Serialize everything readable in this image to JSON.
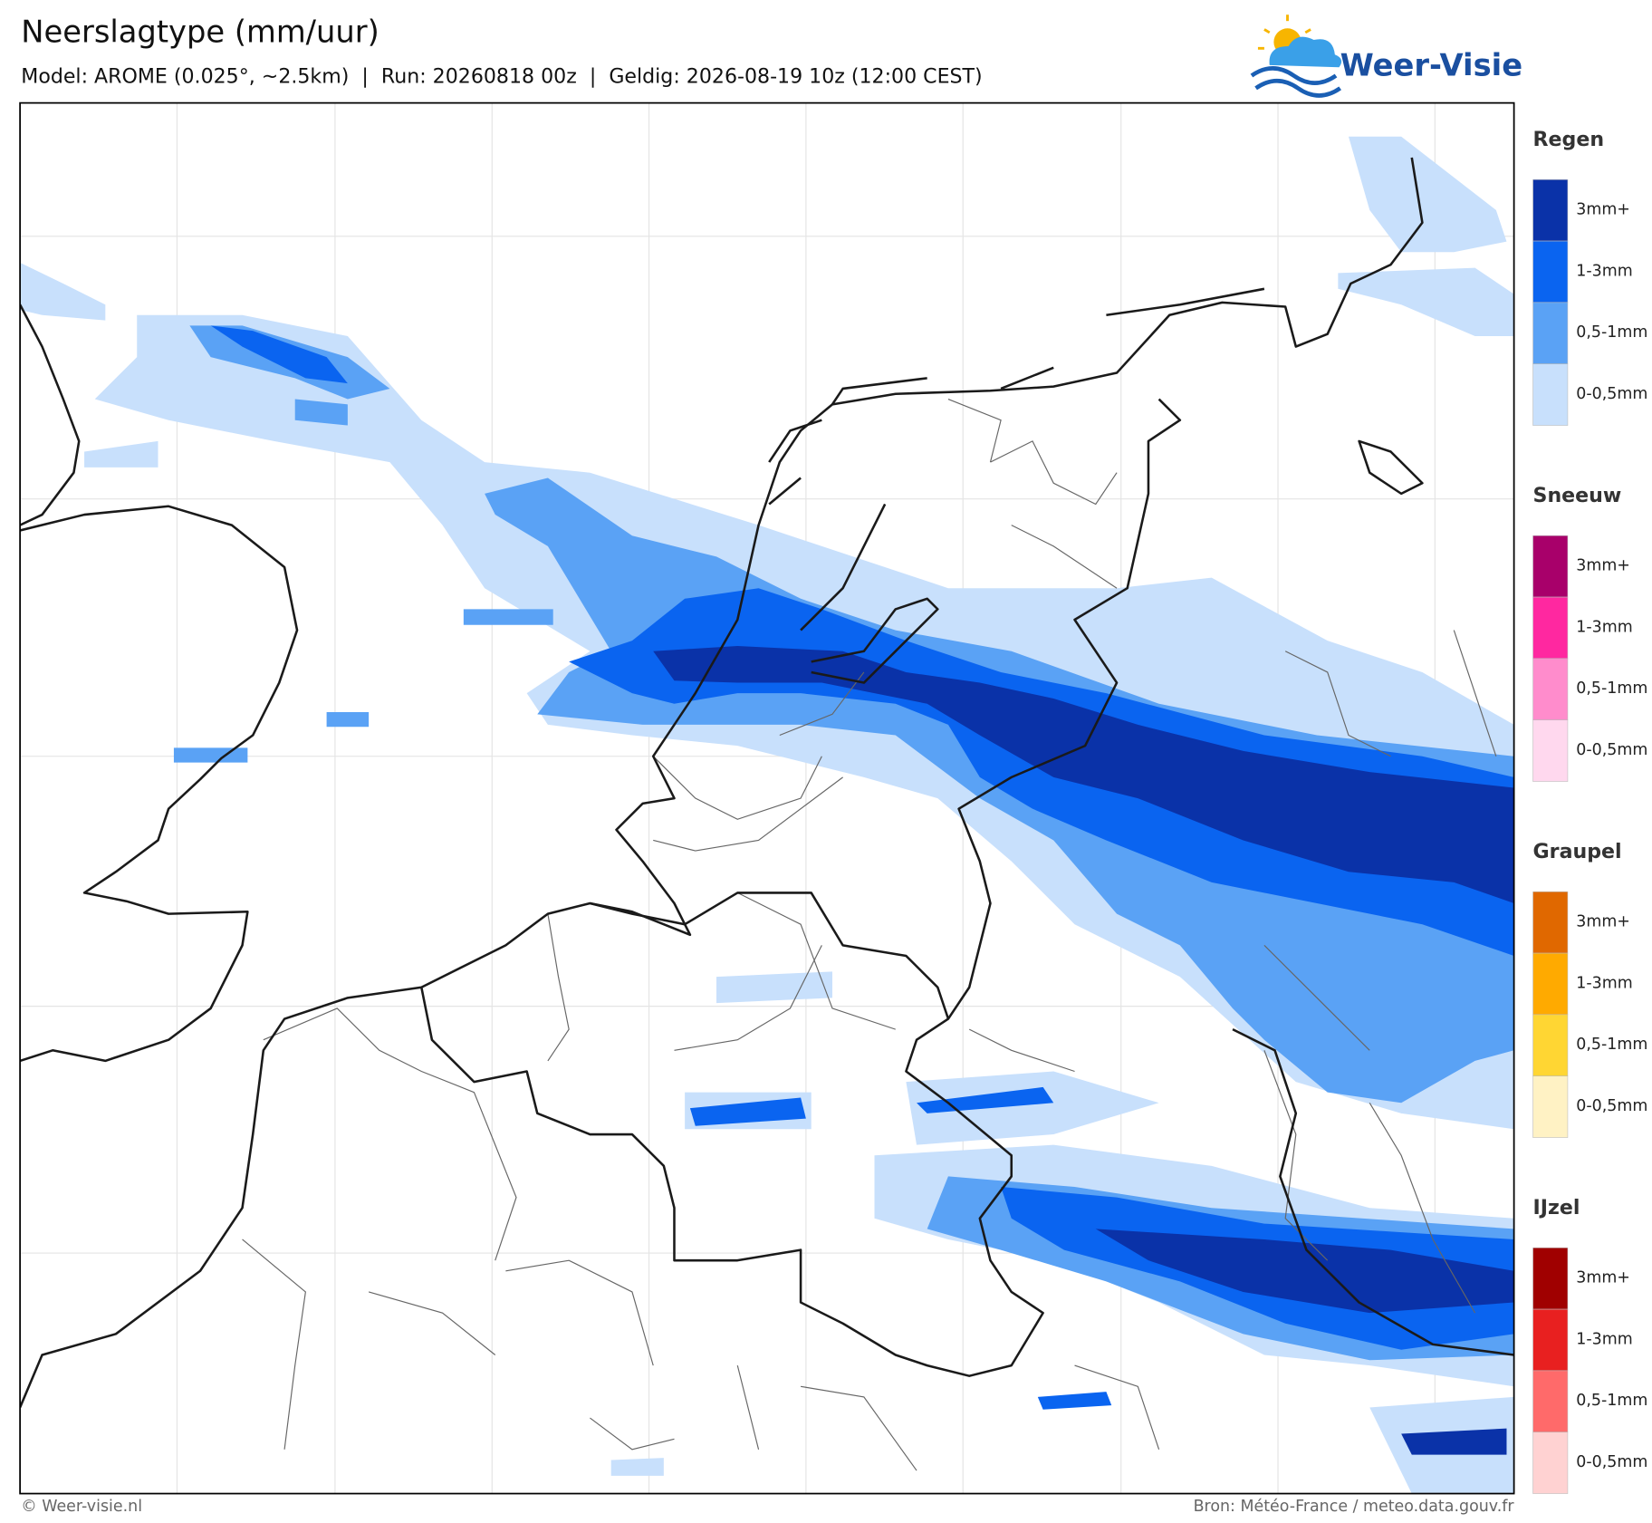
{
  "header": {
    "title": "Neerslagtype (mm/uur)",
    "subtitle": "Model: AROME (0.025°, ~2.5km)  |  Run: 20260818 00z  |  Geldig: 2026-08-19 10z (12:00 CEST)",
    "logo": "Weer-Visie"
  },
  "legend": [
    {
      "title": "Regen",
      "items": [
        {
          "label": "3mm+",
          "color": "#0a32a8"
        },
        {
          "label": "1-3mm",
          "color": "#0a64f0"
        },
        {
          "label": "0,5-1mm",
          "color": "#5aa2f5"
        },
        {
          "label": "0-0,5mm",
          "color": "#c8e0fc"
        }
      ]
    },
    {
      "title": "Sneeuw",
      "items": [
        {
          "label": "3mm+",
          "color": "#a8006a"
        },
        {
          "label": "1-3mm",
          "color": "#ff28a0"
        },
        {
          "label": "0,5-1mm",
          "color": "#ff8ccc"
        },
        {
          "label": "0-0,5mm",
          "color": "#ffd8ee"
        }
      ]
    },
    {
      "title": "Graupel",
      "items": [
        {
          "label": "3mm+",
          "color": "#e06800"
        },
        {
          "label": "1-3mm",
          "color": "#ffaa00"
        },
        {
          "label": "0,5-1mm",
          "color": "#ffd633"
        },
        {
          "label": "0-0,5mm",
          "color": "#fff2c4"
        }
      ]
    },
    {
      "title": "IJzel",
      "items": [
        {
          "label": "3mm+",
          "color": "#a00000"
        },
        {
          "label": "1-3mm",
          "color": "#e82020"
        },
        {
          "label": "0,5-1mm",
          "color": "#ff6a6a"
        },
        {
          "label": "0-0,5mm",
          "color": "#ffd2d2"
        }
      ]
    }
  ],
  "footer": {
    "left": "© Weer-visie.nl",
    "right": "Bron: Météo-France / meteo.data.gouv.fr"
  }
}
